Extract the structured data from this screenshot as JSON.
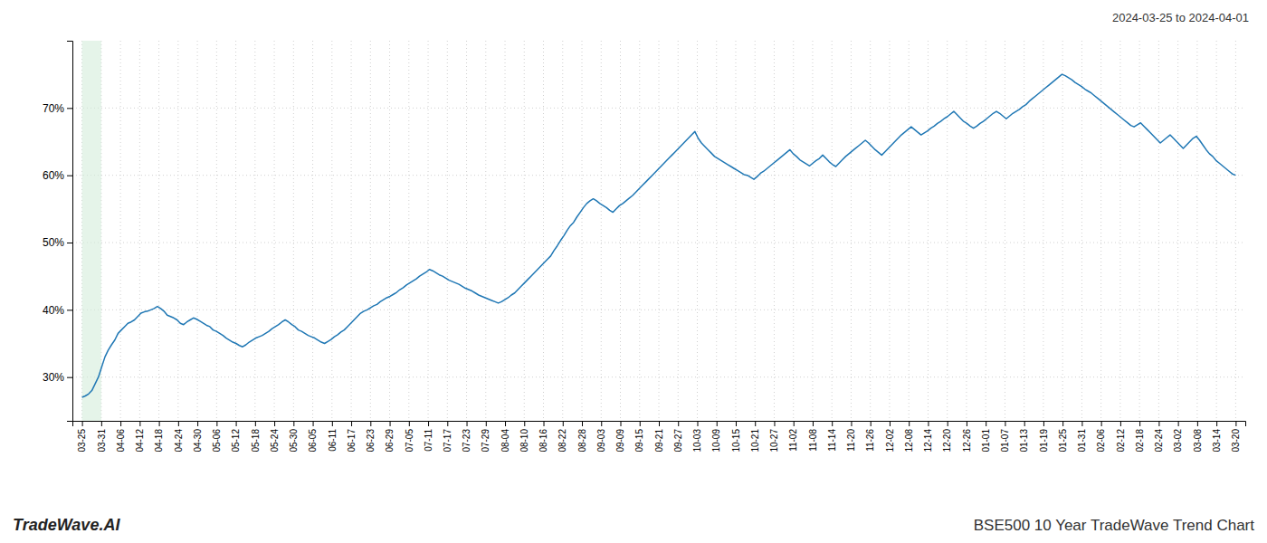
{
  "chart_data": {
    "type": "line",
    "title": "BSE500 10 Year TradeWave Trend Chart",
    "subtitle": "2024-03-25 to 2024-04-01",
    "annotations": [
      "TradeWave.AI"
    ],
    "grid": true,
    "highlight_range": [
      0,
      1.0
    ],
    "highlight_color": "#d4edda",
    "xlim": [
      -0.5,
      60.5
    ],
    "xticks": [
      {
        "value": 0,
        "label": "03-25"
      },
      {
        "value": 1,
        "label": "03-31"
      },
      {
        "value": 2,
        "label": "04-06"
      },
      {
        "value": 3,
        "label": "04-12"
      },
      {
        "value": 4,
        "label": "04-18"
      },
      {
        "value": 5,
        "label": "04-24"
      },
      {
        "value": 6,
        "label": "04-30"
      },
      {
        "value": 7,
        "label": "05-06"
      },
      {
        "value": 8,
        "label": "05-12"
      },
      {
        "value": 9,
        "label": "05-18"
      },
      {
        "value": 10,
        "label": "05-24"
      },
      {
        "value": 11,
        "label": "05-30"
      },
      {
        "value": 12,
        "label": "06-05"
      },
      {
        "value": 13,
        "label": "06-11"
      },
      {
        "value": 14,
        "label": "06-17"
      },
      {
        "value": 15,
        "label": "06-23"
      },
      {
        "value": 16,
        "label": "06-29"
      },
      {
        "value": 17,
        "label": "07-05"
      },
      {
        "value": 18,
        "label": "07-11"
      },
      {
        "value": 19,
        "label": "07-17"
      },
      {
        "value": 20,
        "label": "07-23"
      },
      {
        "value": 21,
        "label": "07-29"
      },
      {
        "value": 22,
        "label": "08-04"
      },
      {
        "value": 23,
        "label": "08-10"
      },
      {
        "value": 24,
        "label": "08-16"
      },
      {
        "value": 25,
        "label": "08-22"
      },
      {
        "value": 26,
        "label": "08-28"
      },
      {
        "value": 27,
        "label": "09-03"
      },
      {
        "value": 28,
        "label": "09-09"
      },
      {
        "value": 29,
        "label": "09-15"
      },
      {
        "value": 30,
        "label": "09-21"
      },
      {
        "value": 31,
        "label": "09-27"
      },
      {
        "value": 32,
        "label": "10-03"
      },
      {
        "value": 33,
        "label": "10-09"
      },
      {
        "value": 34,
        "label": "10-15"
      },
      {
        "value": 35,
        "label": "10-21"
      },
      {
        "value": 36,
        "label": "10-27"
      },
      {
        "value": 37,
        "label": "11-02"
      },
      {
        "value": 38,
        "label": "11-08"
      },
      {
        "value": 39,
        "label": "11-14"
      },
      {
        "value": 40,
        "label": "11-20"
      },
      {
        "value": 41,
        "label": "11-26"
      },
      {
        "value": 42,
        "label": "12-02"
      },
      {
        "value": 43,
        "label": "12-08"
      },
      {
        "value": 44,
        "label": "12-14"
      },
      {
        "value": 45,
        "label": "12-20"
      },
      {
        "value": 46,
        "label": "12-26"
      },
      {
        "value": 47,
        "label": "01-01"
      },
      {
        "value": 48,
        "label": "01-07"
      },
      {
        "value": 49,
        "label": "01-13"
      },
      {
        "value": 50,
        "label": "01-19"
      },
      {
        "value": 51,
        "label": "01-25"
      },
      {
        "value": 52,
        "label": "01-31"
      },
      {
        "value": 53,
        "label": "02-06"
      },
      {
        "value": 54,
        "label": "02-12"
      },
      {
        "value": 55,
        "label": "02-18"
      },
      {
        "value": 56,
        "label": "02-24"
      },
      {
        "value": 57,
        "label": "03-02"
      },
      {
        "value": 58,
        "label": "03-08"
      },
      {
        "value": 59,
        "label": "03-14"
      },
      {
        "value": 60,
        "label": "03-20"
      }
    ],
    "ylim": [
      0.235,
      0.8
    ],
    "yticks": [
      {
        "value": 0.3,
        "label": "30%"
      },
      {
        "value": 0.4,
        "label": "40%"
      },
      {
        "value": 0.5,
        "label": "50%"
      },
      {
        "value": 0.6,
        "label": "60%"
      },
      {
        "value": 0.7,
        "label": "70%"
      }
    ],
    "x": [
      0,
      0.1705,
      0.3409,
      0.5114,
      0.6818,
      0.8523,
      1.0227,
      1.1932,
      1.3636,
      1.5341,
      1.7045,
      1.875,
      2.0455,
      2.2159,
      2.3864,
      2.5568,
      2.7273,
      2.8977,
      3.0682,
      3.2386,
      3.4091,
      3.5795,
      3.75,
      3.9205,
      4.0909,
      4.2614,
      4.4318,
      4.6023,
      4.7727,
      4.9432,
      5.1136,
      5.2841,
      5.4545,
      5.625,
      5.7955,
      5.9659,
      6.1364,
      6.3068,
      6.4773,
      6.6477,
      6.8182,
      6.9886,
      7.1591,
      7.3295,
      7.5,
      7.6705,
      7.8409,
      8.0114,
      8.1818,
      8.3523,
      8.5227,
      8.6932,
      8.8636,
      9.0341,
      9.2045,
      9.375,
      9.5455,
      9.7159,
      9.8864,
      10.0568,
      10.2273,
      10.3977,
      10.5682,
      10.7386,
      10.9091,
      11.0795,
      11.25,
      11.4205,
      11.5909,
      11.7614,
      11.9318,
      12.1023,
      12.2727,
      12.4432,
      12.6136,
      12.7841,
      12.9545,
      13.125,
      13.2955,
      13.4659,
      13.6364,
      13.8068,
      13.9773,
      14.1477,
      14.3182,
      14.4886,
      14.6591,
      14.8295,
      15,
      15.1705,
      15.3409,
      15.5114,
      15.6818,
      15.8523,
      16.0227,
      16.1932,
      16.3636,
      16.5341,
      16.7045,
      16.875,
      17.0455,
      17.2159,
      17.3864,
      17.5568,
      17.7273,
      17.8977,
      18.0682,
      18.2386,
      18.4091,
      18.5795,
      18.75,
      18.9205,
      19.0909,
      19.2614,
      19.4318,
      19.6023,
      19.7727,
      19.9432,
      20.1136,
      20.2841,
      20.4545,
      20.625,
      20.7955,
      20.9659,
      21.1364,
      21.3068,
      21.4773,
      21.6477,
      21.8182,
      21.9886,
      22.1591,
      22.3295,
      22.5,
      22.6705,
      22.8409,
      23.0114,
      23.1818,
      23.3523,
      23.5227,
      23.6932,
      23.8636,
      24.0341,
      24.2045,
      24.375,
      24.5455,
      24.7159,
      24.8864,
      25.0568,
      25.2273,
      25.3977,
      25.5682,
      25.7386,
      25.9091,
      26.0795,
      26.25,
      26.4205,
      26.5909,
      26.7614,
      26.9318,
      27.1023,
      27.2727,
      27.4432,
      27.6136,
      27.7841,
      27.9545,
      28.125,
      28.2955,
      28.4659,
      28.6364,
      28.8068,
      28.9773,
      29.1477,
      29.3182,
      29.4886,
      29.6591,
      29.8295,
      30,
      30.1705,
      30.3409,
      30.5114,
      30.6818,
      30.8523,
      31.0227,
      31.1932,
      31.3636,
      31.5341,
      31.7045,
      31.875,
      32.0455,
      32.2159,
      32.3864,
      32.5568,
      32.7273,
      32.8977,
      33.0682,
      33.2386,
      33.4091,
      33.5795,
      33.75,
      33.9205,
      34.0909,
      34.2614,
      34.4318,
      34.6023,
      34.7727,
      34.9432,
      35.1136,
      35.2841,
      35.4545,
      35.625,
      35.7955,
      35.9659,
      36.1364,
      36.3068,
      36.4773,
      36.6477,
      36.8182,
      36.9886,
      37.1591,
      37.3295,
      37.5,
      37.6705,
      37.8409,
      38.0114,
      38.1818,
      38.3523,
      38.5227,
      38.6932,
      38.8636,
      39.0341,
      39.2045,
      39.375,
      39.5455,
      39.7159,
      39.8864,
      40.0568,
      40.2273,
      40.3977,
      40.5682,
      40.7386,
      40.9091,
      41.0795,
      41.25,
      41.4205,
      41.5909,
      41.7614,
      41.9318,
      42.1023,
      42.2727,
      42.4432,
      42.6136,
      42.7841,
      42.9545,
      43.125,
      43.2955,
      43.4659,
      43.6364,
      43.8068,
      43.9773,
      44.1477,
      44.3182,
      44.4886,
      44.6591,
      44.8295,
      45,
      45.1705,
      45.3409,
      45.5114,
      45.6818,
      45.8523,
      46.0227,
      46.1932,
      46.3636,
      46.5341,
      46.7045,
      46.875,
      47.0455,
      47.2159,
      47.3864,
      47.5568,
      47.7273,
      47.8977,
      48.0682,
      48.2386,
      48.4091,
      48.5795,
      48.75,
      48.9205,
      49.0909,
      49.2614,
      49.4318,
      49.6023,
      49.7727,
      49.9432,
      50.1136,
      50.2841,
      50.4545,
      50.625,
      50.7955,
      50.9659,
      51.1364,
      51.3068,
      51.4773,
      51.6477,
      51.8182,
      51.9886,
      52.1591,
      52.3295,
      52.5,
      52.6705,
      52.8409,
      53.0114,
      53.1818,
      53.3523,
      53.5227,
      53.6932,
      53.8636,
      54.0341,
      54.2045,
      54.375,
      54.5455,
      54.7159,
      54.8864,
      55.0568,
      55.2273,
      55.3977,
      55.5682,
      55.7386,
      55.9091,
      56.0795,
      56.25,
      56.4205,
      56.5909,
      56.7614,
      56.9318,
      57.1023,
      57.2727,
      57.4432,
      57.6136,
      57.7841,
      57.9545,
      58.125,
      58.2955,
      58.4659,
      58.6364,
      58.8068,
      58.9773,
      59.1477,
      59.3182,
      59.4886,
      59.6591,
      59.8295,
      60
    ],
    "values": [
      0.27,
      0.272,
      0.275,
      0.28,
      0.29,
      0.3,
      0.315,
      0.33,
      0.34,
      0.348,
      0.355,
      0.365,
      0.37,
      0.375,
      0.38,
      0.382,
      0.385,
      0.39,
      0.395,
      0.397,
      0.398,
      0.4,
      0.402,
      0.405,
      0.402,
      0.398,
      0.392,
      0.39,
      0.388,
      0.385,
      0.38,
      0.378,
      0.382,
      0.385,
      0.388,
      0.386,
      0.383,
      0.38,
      0.377,
      0.375,
      0.37,
      0.368,
      0.365,
      0.362,
      0.358,
      0.355,
      0.352,
      0.35,
      0.347,
      0.345,
      0.348,
      0.352,
      0.355,
      0.358,
      0.36,
      0.362,
      0.365,
      0.368,
      0.372,
      0.375,
      0.378,
      0.382,
      0.385,
      0.382,
      0.378,
      0.375,
      0.37,
      0.368,
      0.365,
      0.362,
      0.36,
      0.358,
      0.355,
      0.352,
      0.35,
      0.353,
      0.356,
      0.36,
      0.363,
      0.367,
      0.37,
      0.375,
      0.38,
      0.385,
      0.39,
      0.395,
      0.398,
      0.4,
      0.403,
      0.406,
      0.408,
      0.412,
      0.415,
      0.418,
      0.42,
      0.423,
      0.426,
      0.43,
      0.433,
      0.437,
      0.44,
      0.443,
      0.446,
      0.45,
      0.453,
      0.456,
      0.46,
      0.458,
      0.455,
      0.452,
      0.45,
      0.447,
      0.444,
      0.442,
      0.44,
      0.438,
      0.435,
      0.432,
      0.43,
      0.428,
      0.425,
      0.422,
      0.42,
      0.418,
      0.416,
      0.414,
      0.412,
      0.41,
      0.412,
      0.415,
      0.418,
      0.422,
      0.425,
      0.43,
      0.435,
      0.44,
      0.445,
      0.45,
      0.455,
      0.46,
      0.465,
      0.47,
      0.475,
      0.48,
      0.488,
      0.495,
      0.503,
      0.51,
      0.518,
      0.525,
      0.53,
      0.538,
      0.545,
      0.552,
      0.558,
      0.562,
      0.565,
      0.562,
      0.558,
      0.555,
      0.552,
      0.548,
      0.545,
      0.55,
      0.555,
      0.558,
      0.562,
      0.566,
      0.57,
      0.575,
      0.58,
      0.585,
      0.59,
      0.595,
      0.6,
      0.605,
      0.61,
      0.615,
      0.62,
      0.625,
      0.63,
      0.635,
      0.64,
      0.645,
      0.65,
      0.655,
      0.66,
      0.665,
      0.655,
      0.648,
      0.643,
      0.638,
      0.633,
      0.628,
      0.625,
      0.622,
      0.619,
      0.616,
      0.613,
      0.61,
      0.607,
      0.604,
      0.601,
      0.6,
      0.597,
      0.594,
      0.598,
      0.603,
      0.606,
      0.61,
      0.614,
      0.618,
      0.622,
      0.626,
      0.63,
      0.634,
      0.638,
      0.632,
      0.628,
      0.623,
      0.62,
      0.617,
      0.614,
      0.618,
      0.622,
      0.625,
      0.63,
      0.625,
      0.62,
      0.616,
      0.613,
      0.618,
      0.623,
      0.628,
      0.632,
      0.636,
      0.64,
      0.644,
      0.648,
      0.652,
      0.648,
      0.643,
      0.638,
      0.634,
      0.63,
      0.635,
      0.64,
      0.645,
      0.65,
      0.655,
      0.66,
      0.664,
      0.668,
      0.672,
      0.668,
      0.664,
      0.66,
      0.663,
      0.666,
      0.67,
      0.673,
      0.677,
      0.68,
      0.684,
      0.687,
      0.691,
      0.695,
      0.69,
      0.685,
      0.68,
      0.677,
      0.673,
      0.67,
      0.673,
      0.677,
      0.68,
      0.684,
      0.688,
      0.692,
      0.695,
      0.692,
      0.688,
      0.684,
      0.688,
      0.692,
      0.695,
      0.698,
      0.702,
      0.705,
      0.71,
      0.714,
      0.718,
      0.722,
      0.726,
      0.73,
      0.734,
      0.738,
      0.742,
      0.746,
      0.75,
      0.748,
      0.745,
      0.742,
      0.738,
      0.735,
      0.732,
      0.728,
      0.725,
      0.722,
      0.718,
      0.714,
      0.71,
      0.706,
      0.702,
      0.698,
      0.694,
      0.69,
      0.686,
      0.682,
      0.678,
      0.674,
      0.672,
      0.675,
      0.678,
      0.673,
      0.668,
      0.663,
      0.658,
      0.653,
      0.648,
      0.652,
      0.656,
      0.66,
      0.655,
      0.65,
      0.645,
      0.64,
      0.645,
      0.65,
      0.655,
      0.658,
      0.652,
      0.645,
      0.638,
      0.632,
      0.628,
      0.622,
      0.618,
      0.614,
      0.61,
      0.606,
      0.602,
      0.6
    ]
  }
}
